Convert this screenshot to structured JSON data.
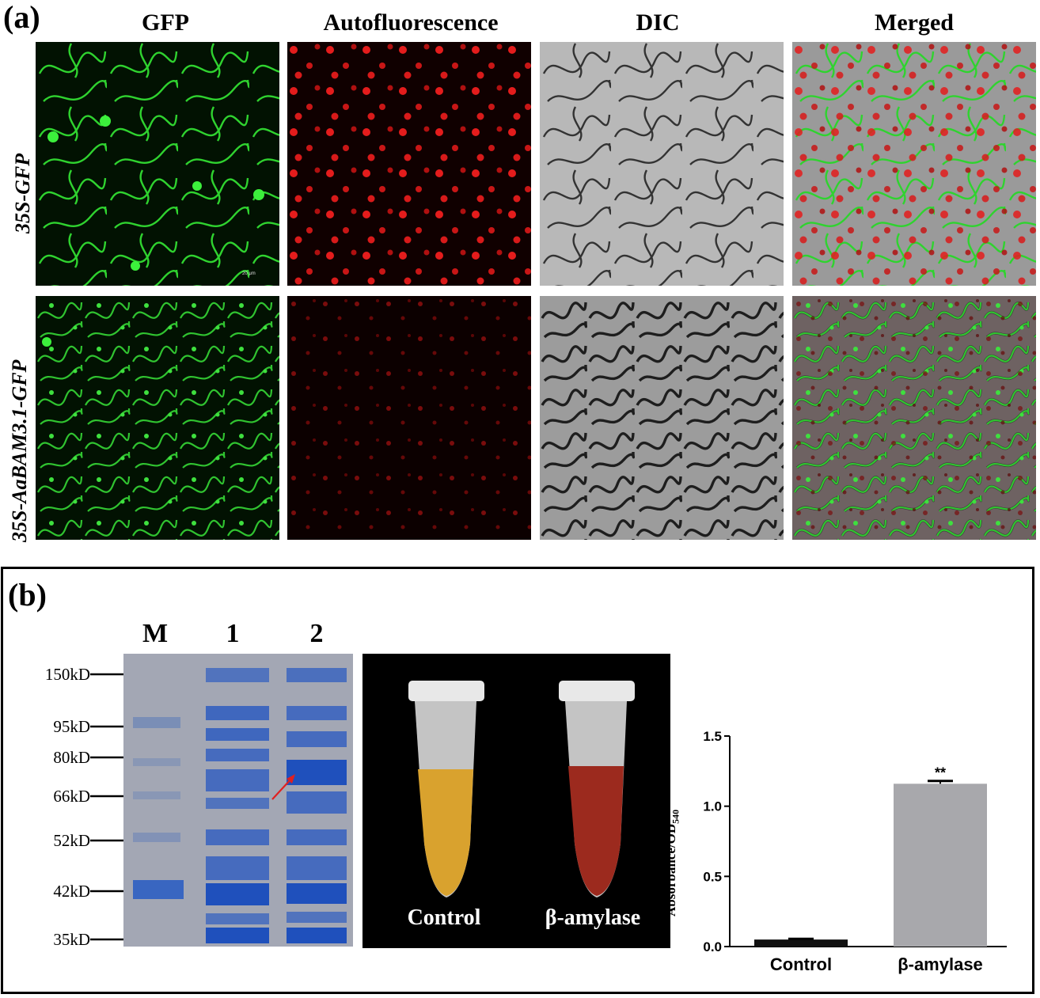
{
  "panel_a": {
    "label": "(a)",
    "columns": [
      "GFP",
      "Autofluorescence",
      "DIC",
      "Merged"
    ],
    "rows": [
      "35S-GFP",
      "35S-AaBAM3.1-GFP"
    ],
    "scale_bar": "20 μm",
    "colors": {
      "gfp": "#22c222",
      "chlorophyll": "#e01818",
      "dic": "#9a9a9a"
    }
  },
  "panel_b": {
    "label": "(b)",
    "gel": {
      "lanes": [
        "M",
        "1",
        "2"
      ],
      "markers": [
        "150kD",
        "95kD",
        "80kD",
        "66kD",
        "52kD",
        "42kD",
        "35kD"
      ],
      "arrow_color": "#e02020"
    },
    "tubes": {
      "labels": [
        "Control",
        "β-amylase"
      ],
      "colors": {
        "control": "#d9a22e",
        "beta_amylase": "#9c2a1e"
      }
    }
  },
  "chart_data": {
    "type": "bar",
    "categories": [
      "Control",
      "β-amylase"
    ],
    "values": [
      0.05,
      1.16
    ],
    "errors": [
      0.005,
      0.02
    ],
    "ylabel": "Absorbance/OD540",
    "ylim": [
      0,
      1.5
    ],
    "yticks": [
      "0.0",
      "0.5",
      "1.0",
      "1.5"
    ],
    "annotations": [
      {
        "category": "β-amylase",
        "text": "**"
      }
    ],
    "colors": [
      "#111111",
      "#a8a8ac"
    ],
    "grid": false
  }
}
